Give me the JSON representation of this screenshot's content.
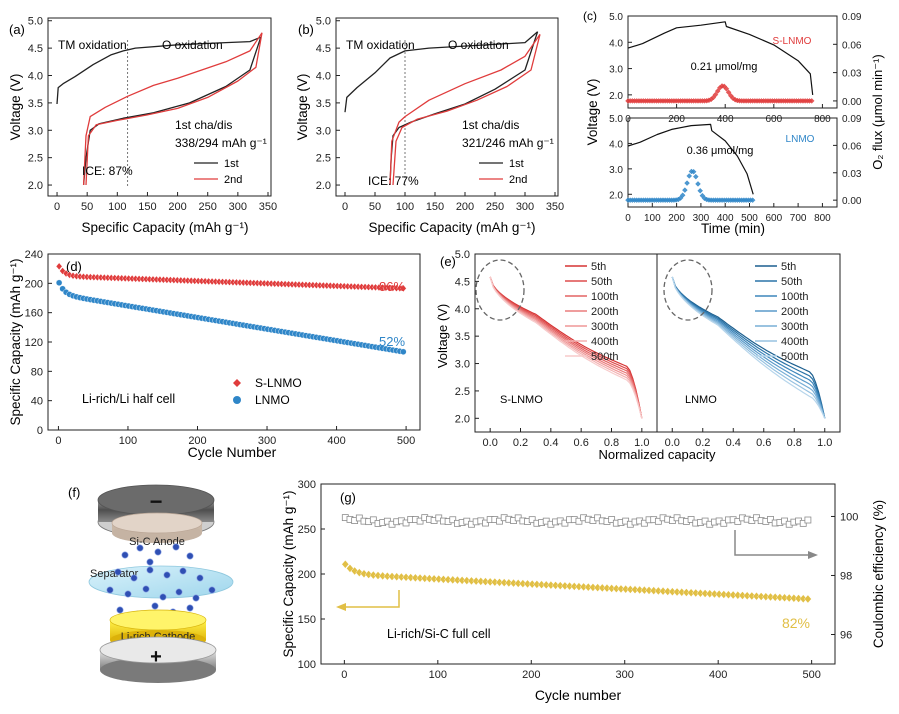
{
  "colors": {
    "red": "#e03c3c",
    "red_light": "#f2b4b4",
    "blue": "#2f86c8",
    "blue_dark": "#1d5f8c",
    "gold": "#e1bf45",
    "gray": "#8c8c8c",
    "black": "#222222"
  },
  "chart_data": [
    {
      "id": "a",
      "panel_label": "(a)",
      "type": "line",
      "xlabel": "Specific Capacity (mAh g⁻¹)",
      "ylabel": "Voltage (V)",
      "xlim": [
        -15,
        355
      ],
      "ylim": [
        1.8,
        5.05
      ],
      "xticks": [
        0,
        50,
        100,
        150,
        200,
        250,
        300,
        350
      ],
      "yticks": [
        2.0,
        2.5,
        3.0,
        3.5,
        4.0,
        4.5,
        5.0
      ],
      "annotations": {
        "region_left": "TM oxidation",
        "region_right": "O oxidation",
        "capacity": "1st cha/dis",
        "capacity_values": "338/294 mAh g⁻¹",
        "ice": "ICE: 87%"
      },
      "divider_x": 117,
      "legend": [
        "1st",
        "2nd"
      ],
      "series": [
        {
          "name": "1st charge",
          "color": "black",
          "points": [
            [
              0,
              3.48
            ],
            [
              2,
              3.78
            ],
            [
              10,
              3.85
            ],
            [
              30,
              3.98
            ],
            [
              60,
              4.2
            ],
            [
              90,
              4.38
            ],
            [
              110,
              4.45
            ],
            [
              130,
              4.5
            ],
            [
              200,
              4.56
            ],
            [
              280,
              4.6
            ],
            [
              320,
              4.62
            ],
            [
              338,
              4.7
            ]
          ]
        },
        {
          "name": "1st discharge",
          "color": "black",
          "points": [
            [
              338,
              4.7
            ],
            [
              320,
              4.1
            ],
            [
              280,
              3.8
            ],
            [
              220,
              3.5
            ],
            [
              160,
              3.32
            ],
            [
              110,
              3.22
            ],
            [
              70,
              3.12
            ],
            [
              55,
              3.0
            ],
            [
              48,
              2.5
            ],
            [
              44,
              2.0
            ]
          ]
        },
        {
          "name": "2nd charge",
          "color": "red",
          "points": [
            [
              44,
              2.0
            ],
            [
              48,
              2.9
            ],
            [
              55,
              3.25
            ],
            [
              80,
              3.42
            ],
            [
              117,
              3.62
            ],
            [
              160,
              3.82
            ],
            [
              200,
              3.95
            ],
            [
              240,
              4.1
            ],
            [
              280,
              4.25
            ],
            [
              320,
              4.45
            ],
            [
              340,
              4.78
            ]
          ]
        },
        {
          "name": "2nd discharge",
          "color": "red",
          "points": [
            [
              340,
              4.78
            ],
            [
              330,
              4.15
            ],
            [
              300,
              3.9
            ],
            [
              250,
              3.6
            ],
            [
              200,
              3.4
            ],
            [
              150,
              3.28
            ],
            [
              100,
              3.18
            ],
            [
              65,
              3.1
            ],
            [
              52,
              2.9
            ],
            [
              48,
              2.0
            ]
          ]
        }
      ]
    },
    {
      "id": "b",
      "panel_label": "(b)",
      "type": "line",
      "xlabel": "Specific Capacity (mAh g⁻¹)",
      "ylabel": "Voltage (V)",
      "xlim": [
        -15,
        355
      ],
      "ylim": [
        1.8,
        5.05
      ],
      "xticks": [
        0,
        50,
        100,
        150,
        200,
        250,
        300,
        350
      ],
      "yticks": [
        2.0,
        2.5,
        3.0,
        3.5,
        4.0,
        4.5,
        5.0
      ],
      "annotations": {
        "region_left": "TM oxidation",
        "region_right": "O oxidation",
        "capacity": "1st cha/dis",
        "capacity_values": "321/246 mAh g⁻¹",
        "ice": "ICE: 77%"
      },
      "divider_x": 100,
      "legend": [
        "1st",
        "2nd"
      ],
      "series": [
        {
          "name": "1st charge",
          "color": "black",
          "points": [
            [
              0,
              3.33
            ],
            [
              3,
              3.6
            ],
            [
              20,
              3.78
            ],
            [
              50,
              4.05
            ],
            [
              75,
              4.32
            ],
            [
              100,
              4.45
            ],
            [
              140,
              4.5
            ],
            [
              220,
              4.55
            ],
            [
              300,
              4.6
            ],
            [
              321,
              4.8
            ]
          ]
        },
        {
          "name": "1st discharge",
          "color": "black",
          "points": [
            [
              321,
              4.8
            ],
            [
              300,
              4.1
            ],
            [
              250,
              3.75
            ],
            [
              200,
              3.48
            ],
            [
              150,
              3.3
            ],
            [
              110,
              3.15
            ],
            [
              90,
              3.05
            ],
            [
              80,
              2.9
            ],
            [
              77,
              2.5
            ],
            [
              75,
              2.0
            ]
          ]
        },
        {
          "name": "2nd charge",
          "color": "red",
          "points": [
            [
              75,
              2.0
            ],
            [
              78,
              2.8
            ],
            [
              90,
              3.15
            ],
            [
              100,
              3.25
            ],
            [
              140,
              3.55
            ],
            [
              200,
              3.85
            ],
            [
              260,
              4.1
            ],
            [
              300,
              4.35
            ],
            [
              325,
              4.75
            ]
          ]
        },
        {
          "name": "2nd discharge",
          "color": "red",
          "points": [
            [
              325,
              4.75
            ],
            [
              310,
              4.1
            ],
            [
              270,
              3.8
            ],
            [
              220,
              3.55
            ],
            [
              170,
              3.35
            ],
            [
              120,
              3.2
            ],
            [
              95,
              3.05
            ],
            [
              85,
              2.8
            ],
            [
              80,
              2.0
            ]
          ]
        }
      ]
    },
    {
      "id": "c",
      "panel_label": "(c)",
      "type": "line",
      "xlabel": "Time (min)",
      "ylabel": "Voltage (V)",
      "y2label": "O₂ flux (μmol min⁻¹)",
      "xlim": [
        0,
        860
      ],
      "ylim": [
        1.5,
        5.0
      ],
      "y2lim": [
        -0.0075,
        0.09
      ],
      "top_xticks": [
        0,
        200,
        400,
        600,
        800
      ],
      "bottom_xticks": [
        0,
        100,
        200,
        300,
        400,
        500,
        600,
        700,
        800
      ],
      "yticks": [
        2.0,
        3.0,
        4.0,
        5.0
      ],
      "y2ticks": [
        0.0,
        0.03,
        0.06,
        0.09
      ],
      "panels": [
        {
          "label": "S-LNMO",
          "flux_annotation": "0.21 μmol/mg",
          "color": "red",
          "voltage": [
            [
              0,
              3.78
            ],
            [
              60,
              3.95
            ],
            [
              150,
              4.35
            ],
            [
              200,
              4.55
            ],
            [
              300,
              4.65
            ],
            [
              400,
              4.78
            ],
            [
              405,
              4.6
            ],
            [
              500,
              4.3
            ],
            [
              600,
              3.9
            ],
            [
              700,
              3.3
            ],
            [
              750,
              2.8
            ],
            [
              760,
              2.0
            ]
          ],
          "peak_center": 390,
          "peak_height": 0.016,
          "peak_width": 32,
          "marker_range": [
            0,
            760
          ]
        },
        {
          "label": "LNMO",
          "flux_annotation": "0.36 μmol/mg",
          "color": "blue",
          "voltage": [
            [
              0,
              3.9
            ],
            [
              50,
              4.05
            ],
            [
              120,
              4.35
            ],
            [
              180,
              4.55
            ],
            [
              260,
              4.7
            ],
            [
              340,
              4.75
            ],
            [
              345,
              4.5
            ],
            [
              400,
              4.1
            ],
            [
              450,
              3.5
            ],
            [
              490,
              2.8
            ],
            [
              515,
              2.0
            ]
          ],
          "peak_center": 265,
          "peak_height": 0.032,
          "peak_width": 30,
          "marker_range": [
            0,
            515
          ]
        }
      ]
    },
    {
      "id": "d",
      "panel_label": "(d)",
      "type": "scatter",
      "xlabel": "Cycle Number",
      "ylabel": "Specific Capacity (mAh g⁻¹)",
      "xlim": [
        -15,
        520
      ],
      "ylim": [
        0,
        240
      ],
      "xticks": [
        0,
        100,
        200,
        300,
        400,
        500
      ],
      "yticks": [
        0,
        40,
        80,
        120,
        160,
        200,
        240
      ],
      "annotation": "Li-rich/Li half cell",
      "series": [
        {
          "name": "S-LNMO",
          "color": "red",
          "retention_label": "86%",
          "start": 225,
          "settle": 210,
          "end": 193
        },
        {
          "name": "LNMO",
          "color": "blue",
          "retention_label": "52%",
          "start": 203,
          "settle": 185,
          "end": 106
        }
      ]
    },
    {
      "id": "e",
      "panel_label": "(e)",
      "type": "line",
      "xlabel": "Normalized capacity",
      "ylabel": "Voltage (V)",
      "xlim": [
        -0.1,
        1.1
      ],
      "ylim": [
        1.75,
        5.0
      ],
      "xticks": [
        0.0,
        0.2,
        0.4,
        0.6,
        0.8,
        1.0
      ],
      "yticks": [
        2.0,
        2.5,
        3.0,
        3.5,
        4.0,
        4.5,
        5.0
      ],
      "cycles": [
        "5th",
        "50th",
        "100th",
        "200th",
        "300th",
        "400th",
        "500th"
      ],
      "subpanels": [
        {
          "label": "S-LNMO",
          "color": "red",
          "plateau_start": 3.9,
          "plateau_end": 2.95,
          "plateau_drop": 0.25
        },
        {
          "label": "LNMO",
          "color": "blue",
          "plateau_start": 3.85,
          "plateau_end": 2.85,
          "plateau_drop": 0.45
        }
      ]
    },
    {
      "id": "g",
      "panel_label": "(g)",
      "type": "scatter",
      "xlabel": "Cycle number",
      "ylabel": "Specific Capacity (mAh g⁻¹)",
      "y2label": "Coulombic efficiency (%)",
      "xlim": [
        -25,
        525
      ],
      "ylim": [
        100,
        300
      ],
      "y2lim": [
        95,
        101.1
      ],
      "xticks": [
        0,
        100,
        200,
        300,
        400,
        500
      ],
      "yticks": [
        100,
        150,
        200,
        250,
        300
      ],
      "y2ticks": [
        96,
        98,
        100
      ],
      "annotation": "Li-rich/Si-C full cell",
      "retention_label": "82%",
      "series": [
        {
          "name": "Capacity",
          "color": "gold",
          "start": 212,
          "settle": 200,
          "end": 172
        },
        {
          "name": "Coulombic efficiency",
          "color": "gray",
          "level": 99.85,
          "noise": 0.12
        }
      ]
    }
  ],
  "schematic": {
    "panel_label": "(f)",
    "minus": "−",
    "plus": "+",
    "anode": "Si-C Anode",
    "separator": "Separator",
    "cathode": "Li-rich Cathode"
  }
}
